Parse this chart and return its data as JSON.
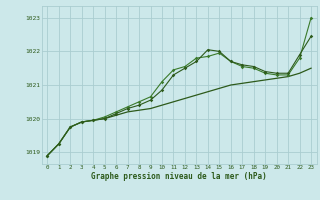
{
  "background_color": "#cce8ea",
  "grid_color": "#aacdd0",
  "line_color_dark": "#2d5a1b",
  "line_color_mid": "#3a7a2a",
  "title": "Graphe pression niveau de la mer (hPa)",
  "xlim": [
    -0.5,
    23.5
  ],
  "ylim": [
    1018.65,
    1023.35
  ],
  "yticks": [
    1019,
    1020,
    1021,
    1022,
    1023
  ],
  "xticks": [
    0,
    1,
    2,
    3,
    4,
    5,
    6,
    7,
    8,
    9,
    10,
    11,
    12,
    13,
    14,
    15,
    16,
    17,
    18,
    19,
    20,
    21,
    22,
    23
  ],
  "smooth_x": [
    0,
    1,
    2,
    3,
    4,
    5,
    6,
    7,
    8,
    9,
    10,
    11,
    12,
    13,
    14,
    15,
    16,
    17,
    18,
    19,
    20,
    21,
    22,
    23
  ],
  "smooth_y": [
    1018.9,
    1019.25,
    1019.75,
    1019.9,
    1019.95,
    1020.0,
    1020.1,
    1020.2,
    1020.25,
    1020.3,
    1020.4,
    1020.5,
    1020.6,
    1020.7,
    1020.8,
    1020.9,
    1021.0,
    1021.05,
    1021.1,
    1021.15,
    1021.2,
    1021.25,
    1021.35,
    1021.5
  ],
  "wave1_x": [
    0,
    1,
    2,
    3,
    4,
    5,
    6,
    7,
    8,
    9,
    10,
    11,
    12,
    13,
    14,
    15,
    16,
    17,
    18,
    19,
    20,
    21,
    22,
    23
  ],
  "wave1_y": [
    1018.9,
    1019.25,
    1019.75,
    1019.9,
    1019.95,
    1020.05,
    1020.2,
    1020.35,
    1020.5,
    1020.65,
    1021.1,
    1021.45,
    1021.55,
    1021.8,
    1021.85,
    1021.95,
    1021.7,
    1021.55,
    1021.5,
    1021.35,
    1021.3,
    1021.3,
    1021.8,
    1023.0
  ],
  "wave2_x": [
    0,
    1,
    2,
    3,
    4,
    5,
    6,
    7,
    8,
    9,
    10,
    11,
    12,
    13,
    14,
    15,
    16,
    17,
    18,
    19,
    20,
    21,
    22,
    23
  ],
  "wave2_y": [
    1018.9,
    1019.25,
    1019.75,
    1019.9,
    1019.95,
    1020.0,
    1020.15,
    1020.3,
    1020.4,
    1020.55,
    1020.85,
    1021.3,
    1021.5,
    1021.7,
    1022.05,
    1022.0,
    1021.7,
    1021.6,
    1021.55,
    1021.4,
    1021.35,
    1021.35,
    1021.9,
    1022.45
  ]
}
